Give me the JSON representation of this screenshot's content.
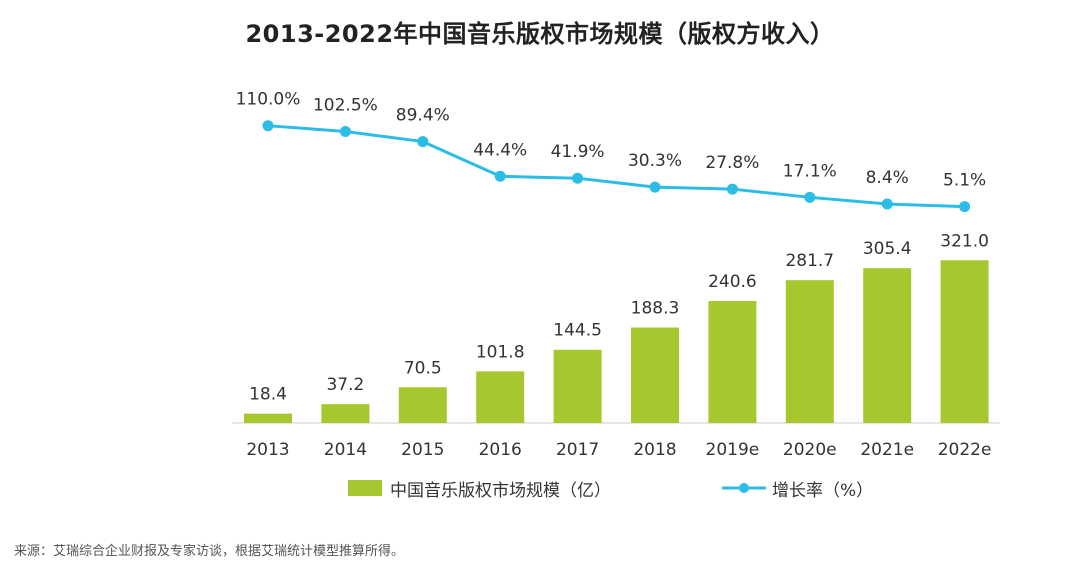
{
  "colors": {
    "bar": "#a6c82e",
    "line": "#2bbde5",
    "axis": "#cccccc",
    "text": "#333333"
  },
  "chart_data": {
    "type": "bar+line",
    "title": "2013-2022年中国音乐版权市场规模（版权方收入）",
    "categories": [
      "2013",
      "2014",
      "2015",
      "2016",
      "2017",
      "2018",
      "2019e",
      "2020e",
      "2021e",
      "2022e"
    ],
    "series": [
      {
        "name": "中国音乐版权市场规模（亿）",
        "type": "bar",
        "values": [
          18.4,
          37.2,
          70.5,
          101.8,
          144.5,
          188.3,
          240.6,
          281.7,
          305.4,
          321.0
        ],
        "labels": [
          "18.4",
          "37.2",
          "70.5",
          "101.8",
          "144.5",
          "188.3",
          "240.6",
          "281.7",
          "305.4",
          "321.0"
        ]
      },
      {
        "name": "增长率（%）",
        "type": "line",
        "values": [
          110.0,
          102.5,
          89.4,
          44.4,
          41.9,
          30.3,
          27.8,
          17.1,
          8.4,
          5.1
        ],
        "labels": [
          "110.0%",
          "102.5%",
          "89.4%",
          "44.4%",
          "41.9%",
          "30.3%",
          "27.8%",
          "17.1%",
          "8.4%",
          "5.1%"
        ]
      }
    ],
    "legend_position": "bottom"
  },
  "source": "来源：艾瑞综合企业财报及专家访谈，根据艾瑞统计模型推算所得。"
}
